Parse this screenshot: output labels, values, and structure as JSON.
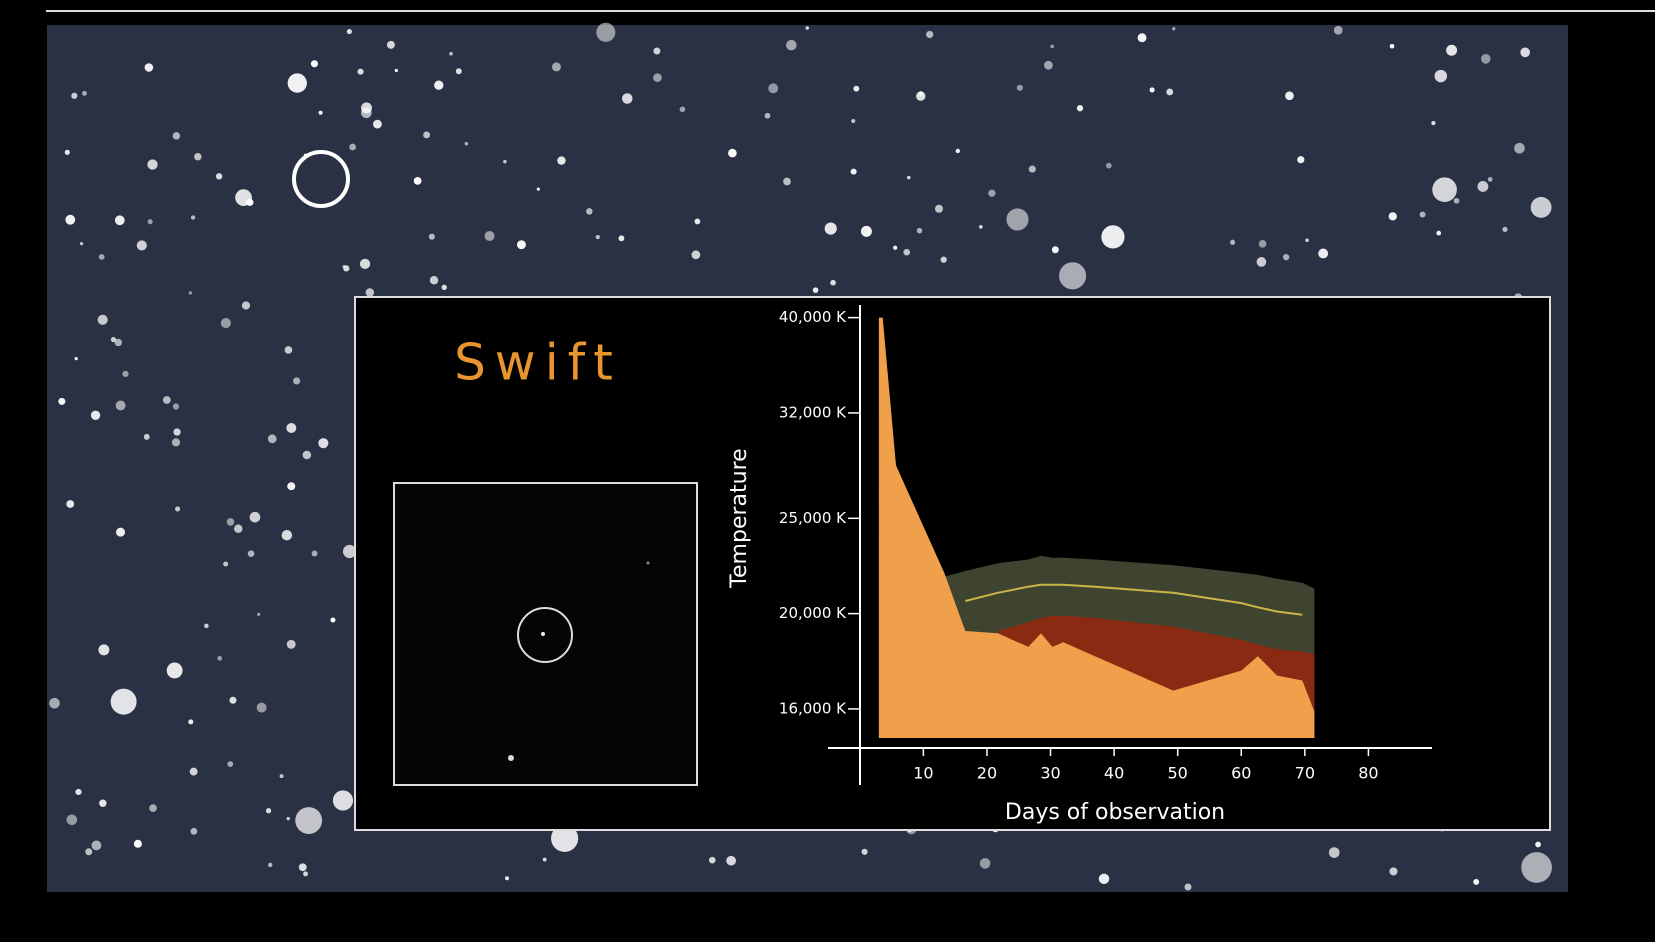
{
  "chart_data": {
    "type": "area",
    "annotation": "Swift",
    "ylabel": "Temperature",
    "xlabel": "Days of observation",
    "x": [
      3,
      3.6,
      5.7,
      13.3,
      16.6,
      21.7,
      26.5,
      28.5,
      30.3,
      32,
      37,
      49.3,
      60,
      62.6,
      65.6,
      69.6,
      71.5
    ],
    "series": [
      {
        "color": "#3f4430",
        "values": [
          null,
          null,
          null,
          21800,
          22100,
          22500,
          22700,
          22900,
          22800,
          22800,
          22700,
          22400,
          22000,
          21900,
          21700,
          21500,
          21200
        ]
      },
      {
        "color": "#8a2a12",
        "values": [
          null,
          null,
          null,
          null,
          null,
          19200,
          19600,
          19800,
          19900,
          19900,
          19800,
          19400,
          18800,
          18600,
          18400,
          18300,
          18200
        ]
      },
      {
        "color": "#f0a04b",
        "values": [
          40000,
          40000,
          28300,
          22000,
          19200,
          19100,
          18500,
          19100,
          18500,
          18700,
          18100,
          16700,
          17500,
          18100,
          17300,
          17100,
          15900
        ]
      },
      {
        "color": "#c9b548",
        "kind": "line",
        "values": [
          null,
          null,
          null,
          null,
          20600,
          21000,
          21300,
          21400,
          21400,
          21400,
          21300,
          21000,
          20500,
          20300,
          20100,
          19950,
          null
        ]
      }
    ],
    "xlim": [
      -5,
      90
    ],
    "ylim": [
      14600,
      41200
    ],
    "log_y": true,
    "xticks": [
      10,
      20,
      30,
      40,
      50,
      60,
      70,
      80
    ],
    "yticks": [
      {
        "value": 16000,
        "label": "16,000 K"
      },
      {
        "value": 20000,
        "label": "20,000 K"
      },
      {
        "value": 25000,
        "label": "25,000 K"
      },
      {
        "value": 32000,
        "label": "32,000 K"
      },
      {
        "value": 40000,
        "label": "40,000 K"
      }
    ]
  }
}
